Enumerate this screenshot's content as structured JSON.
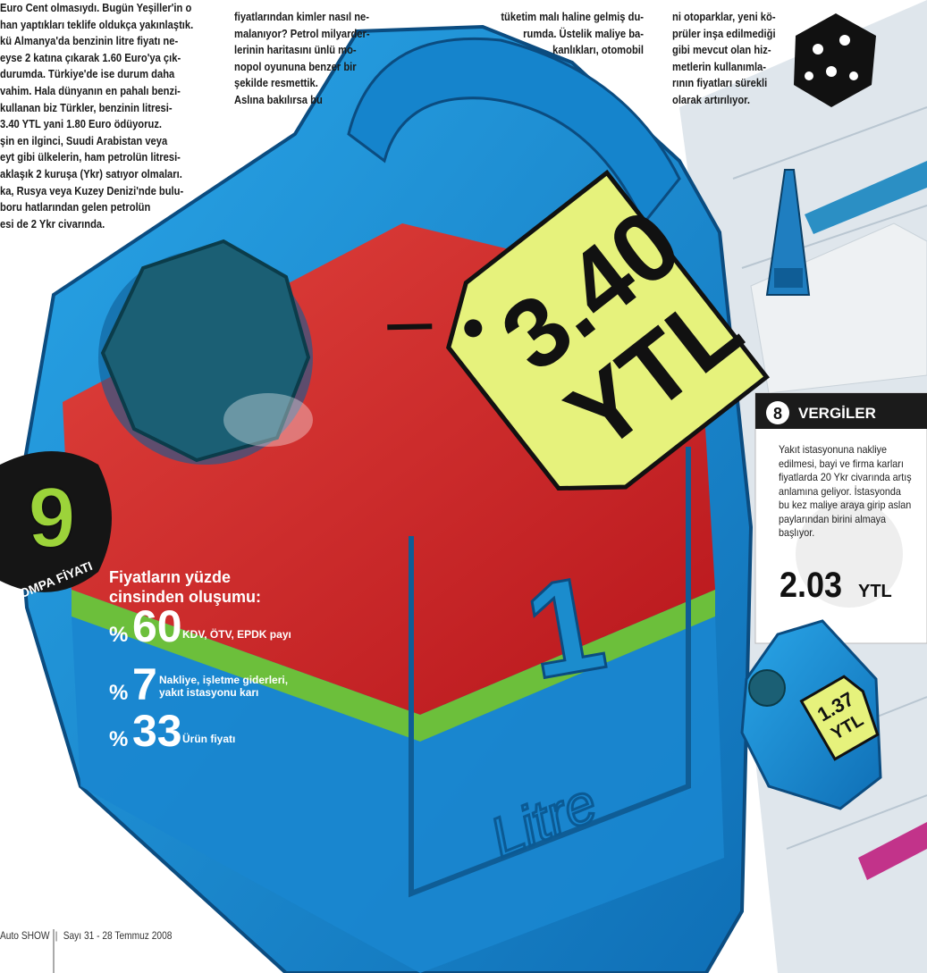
{
  "article": {
    "columns": [
      [
        "Euro Cent olmasıydı. Bugün Yeşiller'in o",
        "han yaptıkları teklife oldukça yakınlaştık.",
        "kü Almanya'da benzinin litre fiyatı ne-",
        "eyse 2 katına çıkarak 1.60 Euro'ya çık-",
        "durumda. Türkiye'de ise durum daha",
        "vahim. Hala dünyanın en pahalı benzi-",
        "kullanan biz Türkler, benzinin litresi-",
        "3.40 YTL yani 1.80 Euro ödüyoruz.",
        "şin en ilginci, Suudi Arabistan veya",
        "eyt gibi ülkelerin, ham petrolün litresi-",
        "aklaşık 2 kuruşa (Ykr) satıyor olmaları.",
        "ka, Rusya veya Kuzey Denizi'nde bulu-",
        "boru hatlarından gelen petrolün",
        "esi de 2 Ykr civarında."
      ],
      [
        "fiyatlarından kimler nasıl ne-",
        "malanıyor? Petrol milyarder-",
        "lerinin haritasını ünlü mo-",
        "nopol oyununa benzer bir",
        "şekilde resmettik.",
        "Aslına bakılırsa bu"
      ],
      [
        "tüketim malı haline gelmiş du-",
        "rumda. Üstelik maliye ba-",
        "kanlıkları, otomobil"
      ],
      [
        "ni otoparklar, yeni kö-",
        "prüler inşa edilmediği",
        "gibi mevcut olan hiz-",
        "metlerin kullanımla-",
        "rının fiyatları sürekli",
        "olarak artırılıyor."
      ]
    ]
  },
  "price_tag": {
    "amount": "3.40",
    "unit": "YTL"
  },
  "can": {
    "number": "1",
    "label": "Litre"
  },
  "badge": {
    "number": "9",
    "label": "POMPA FİYATI"
  },
  "breakdown": {
    "title_lines": [
      "Fiyatların yüzde",
      "cinsinden oluşumu:"
    ],
    "items": [
      {
        "sign": "%",
        "value": 60,
        "label_lines": [
          "KDV, ÖTV, EPDK payı"
        ]
      },
      {
        "sign": "%",
        "value": 7,
        "label_lines": [
          "Nakliye, işletme giderleri,",
          "yakıt istasyonu karı"
        ]
      },
      {
        "sign": "%",
        "value": 33,
        "label_lines": [
          "Ürün fiyatı"
        ]
      }
    ]
  },
  "card": {
    "number": "8",
    "title": "VERGİLER",
    "body_lines": [
      "Yakıt istasyonuna nakliye",
      "edilmesi, bayi ve firma karları",
      "fiyatlarda 20 Ykr civarında artış",
      "anlamına geliyor. İstasyonda",
      "bu kez maliye araya girip aslan",
      "paylarından birini almaya",
      "başlıyor."
    ],
    "amount": "2.03",
    "unit": "YTL"
  },
  "small_tag": {
    "amount": "1.37",
    "unit": "YTL"
  },
  "footer": {
    "brand": "Auto SHOW",
    "issue": "Sayı 31 - 28 Temmuz 2008"
  }
}
